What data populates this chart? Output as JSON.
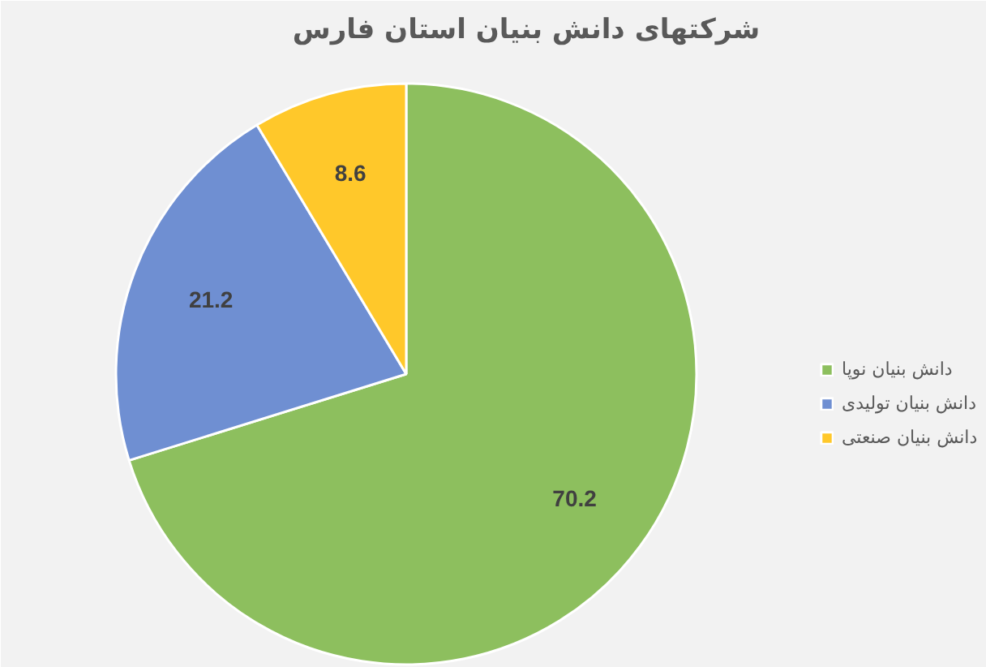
{
  "chart_data": {
    "type": "pie",
    "title": "شرکتهای دانش بنیان استان فارس",
    "categories": [
      "دانش بنیان نوپا",
      "دانش بنیان تولیدی",
      "دانش بنیان صنعتی"
    ],
    "values": [
      70.2,
      21.2,
      8.6
    ],
    "colors": [
      "#8dbf5e",
      "#6f8fd2",
      "#ffc82a"
    ],
    "data_labels": true,
    "legend": "right"
  }
}
